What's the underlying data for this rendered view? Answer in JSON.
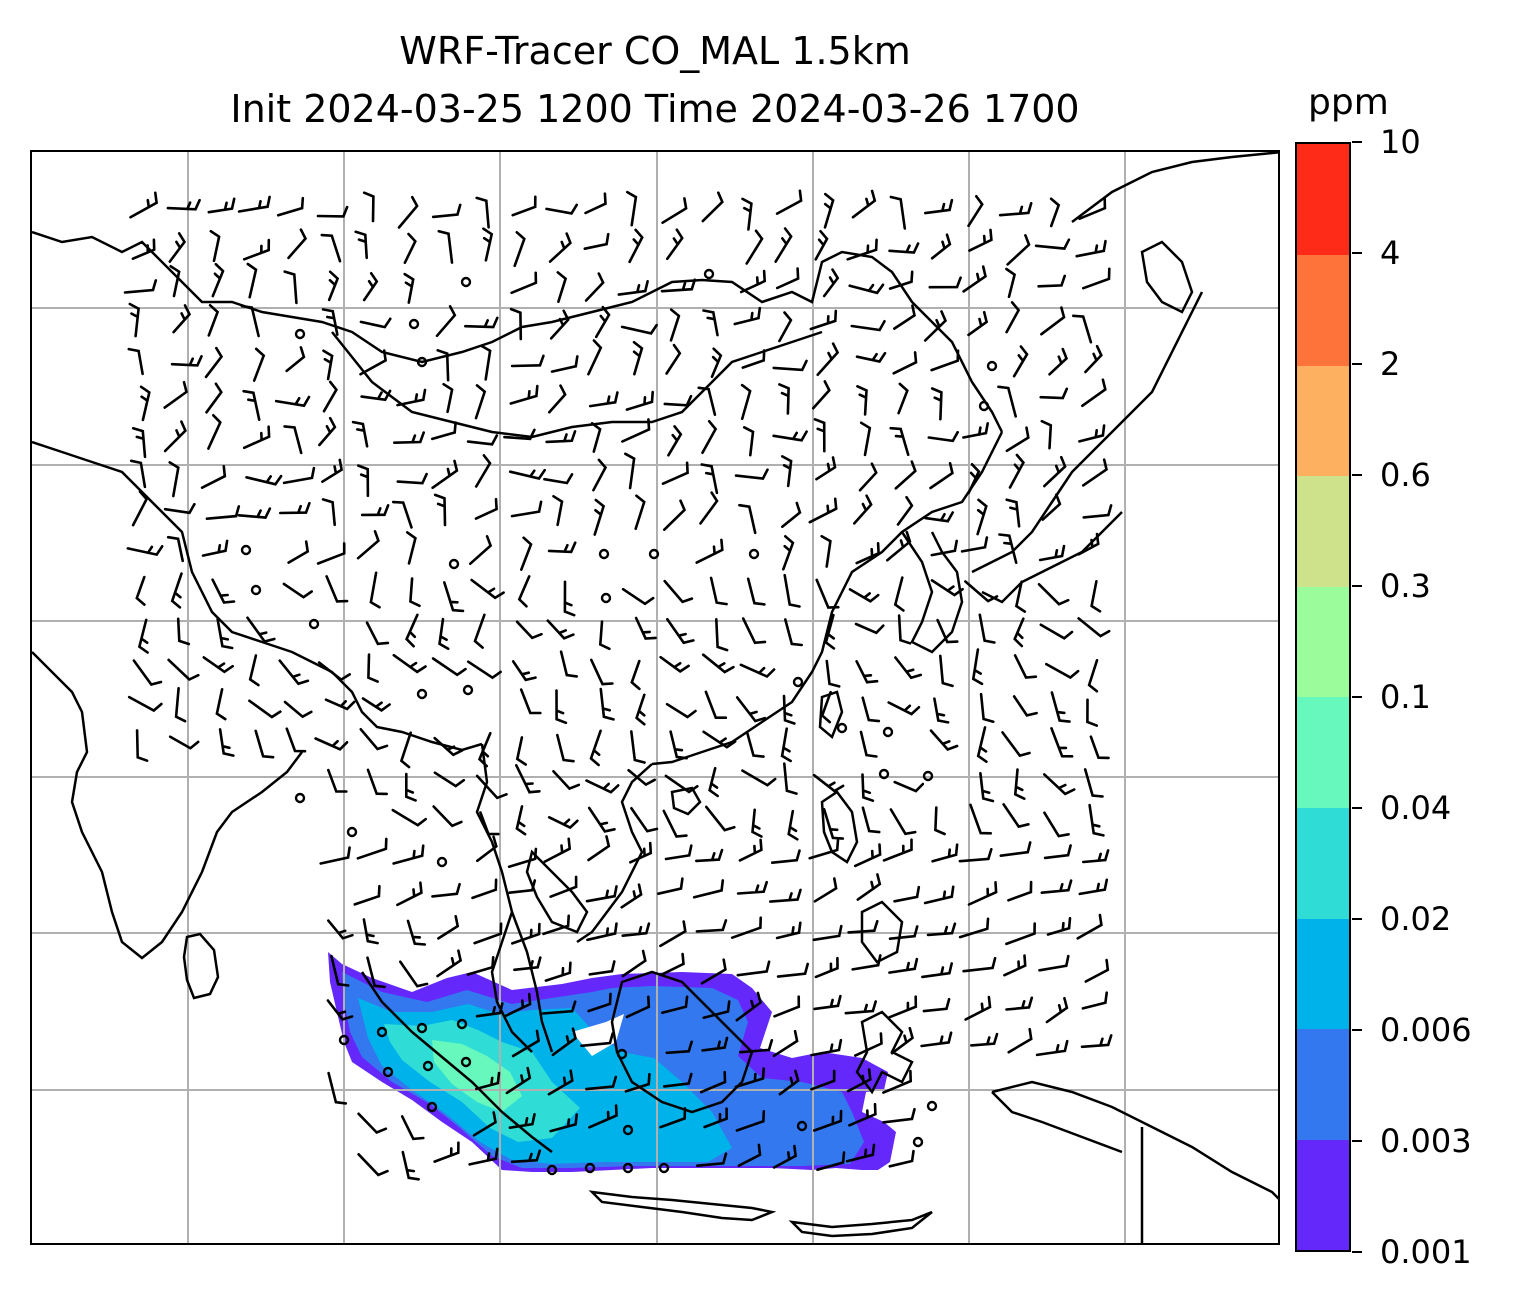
{
  "title": {
    "line1": "WRF-Tracer CO_MAL 1.5km",
    "line2": "Init 2024-03-25 1200 Time 2024-03-26 1700"
  },
  "map": {
    "projection_grid": "lat/lon gridlines",
    "grid_color": "#b0b0b0",
    "coastline_color": "#000000",
    "region": "South and East Asia, Maritime Continent",
    "wind_barbs": true,
    "calm_circles": true
  },
  "colorbar": {
    "unit": "ppm",
    "levels": [
      "0.001",
      "0.003",
      "0.006",
      "0.02",
      "0.04",
      "0.1",
      "0.3",
      "0.6",
      "2",
      "4",
      "10"
    ],
    "colors": [
      "#6428fa",
      "#3478f0",
      "#00b2ea",
      "#2fddd6",
      "#67f8be",
      "#9bfc9c",
      "#cde28a",
      "#fdb060",
      "#fe7339",
      "#fd2b17"
    ]
  }
}
